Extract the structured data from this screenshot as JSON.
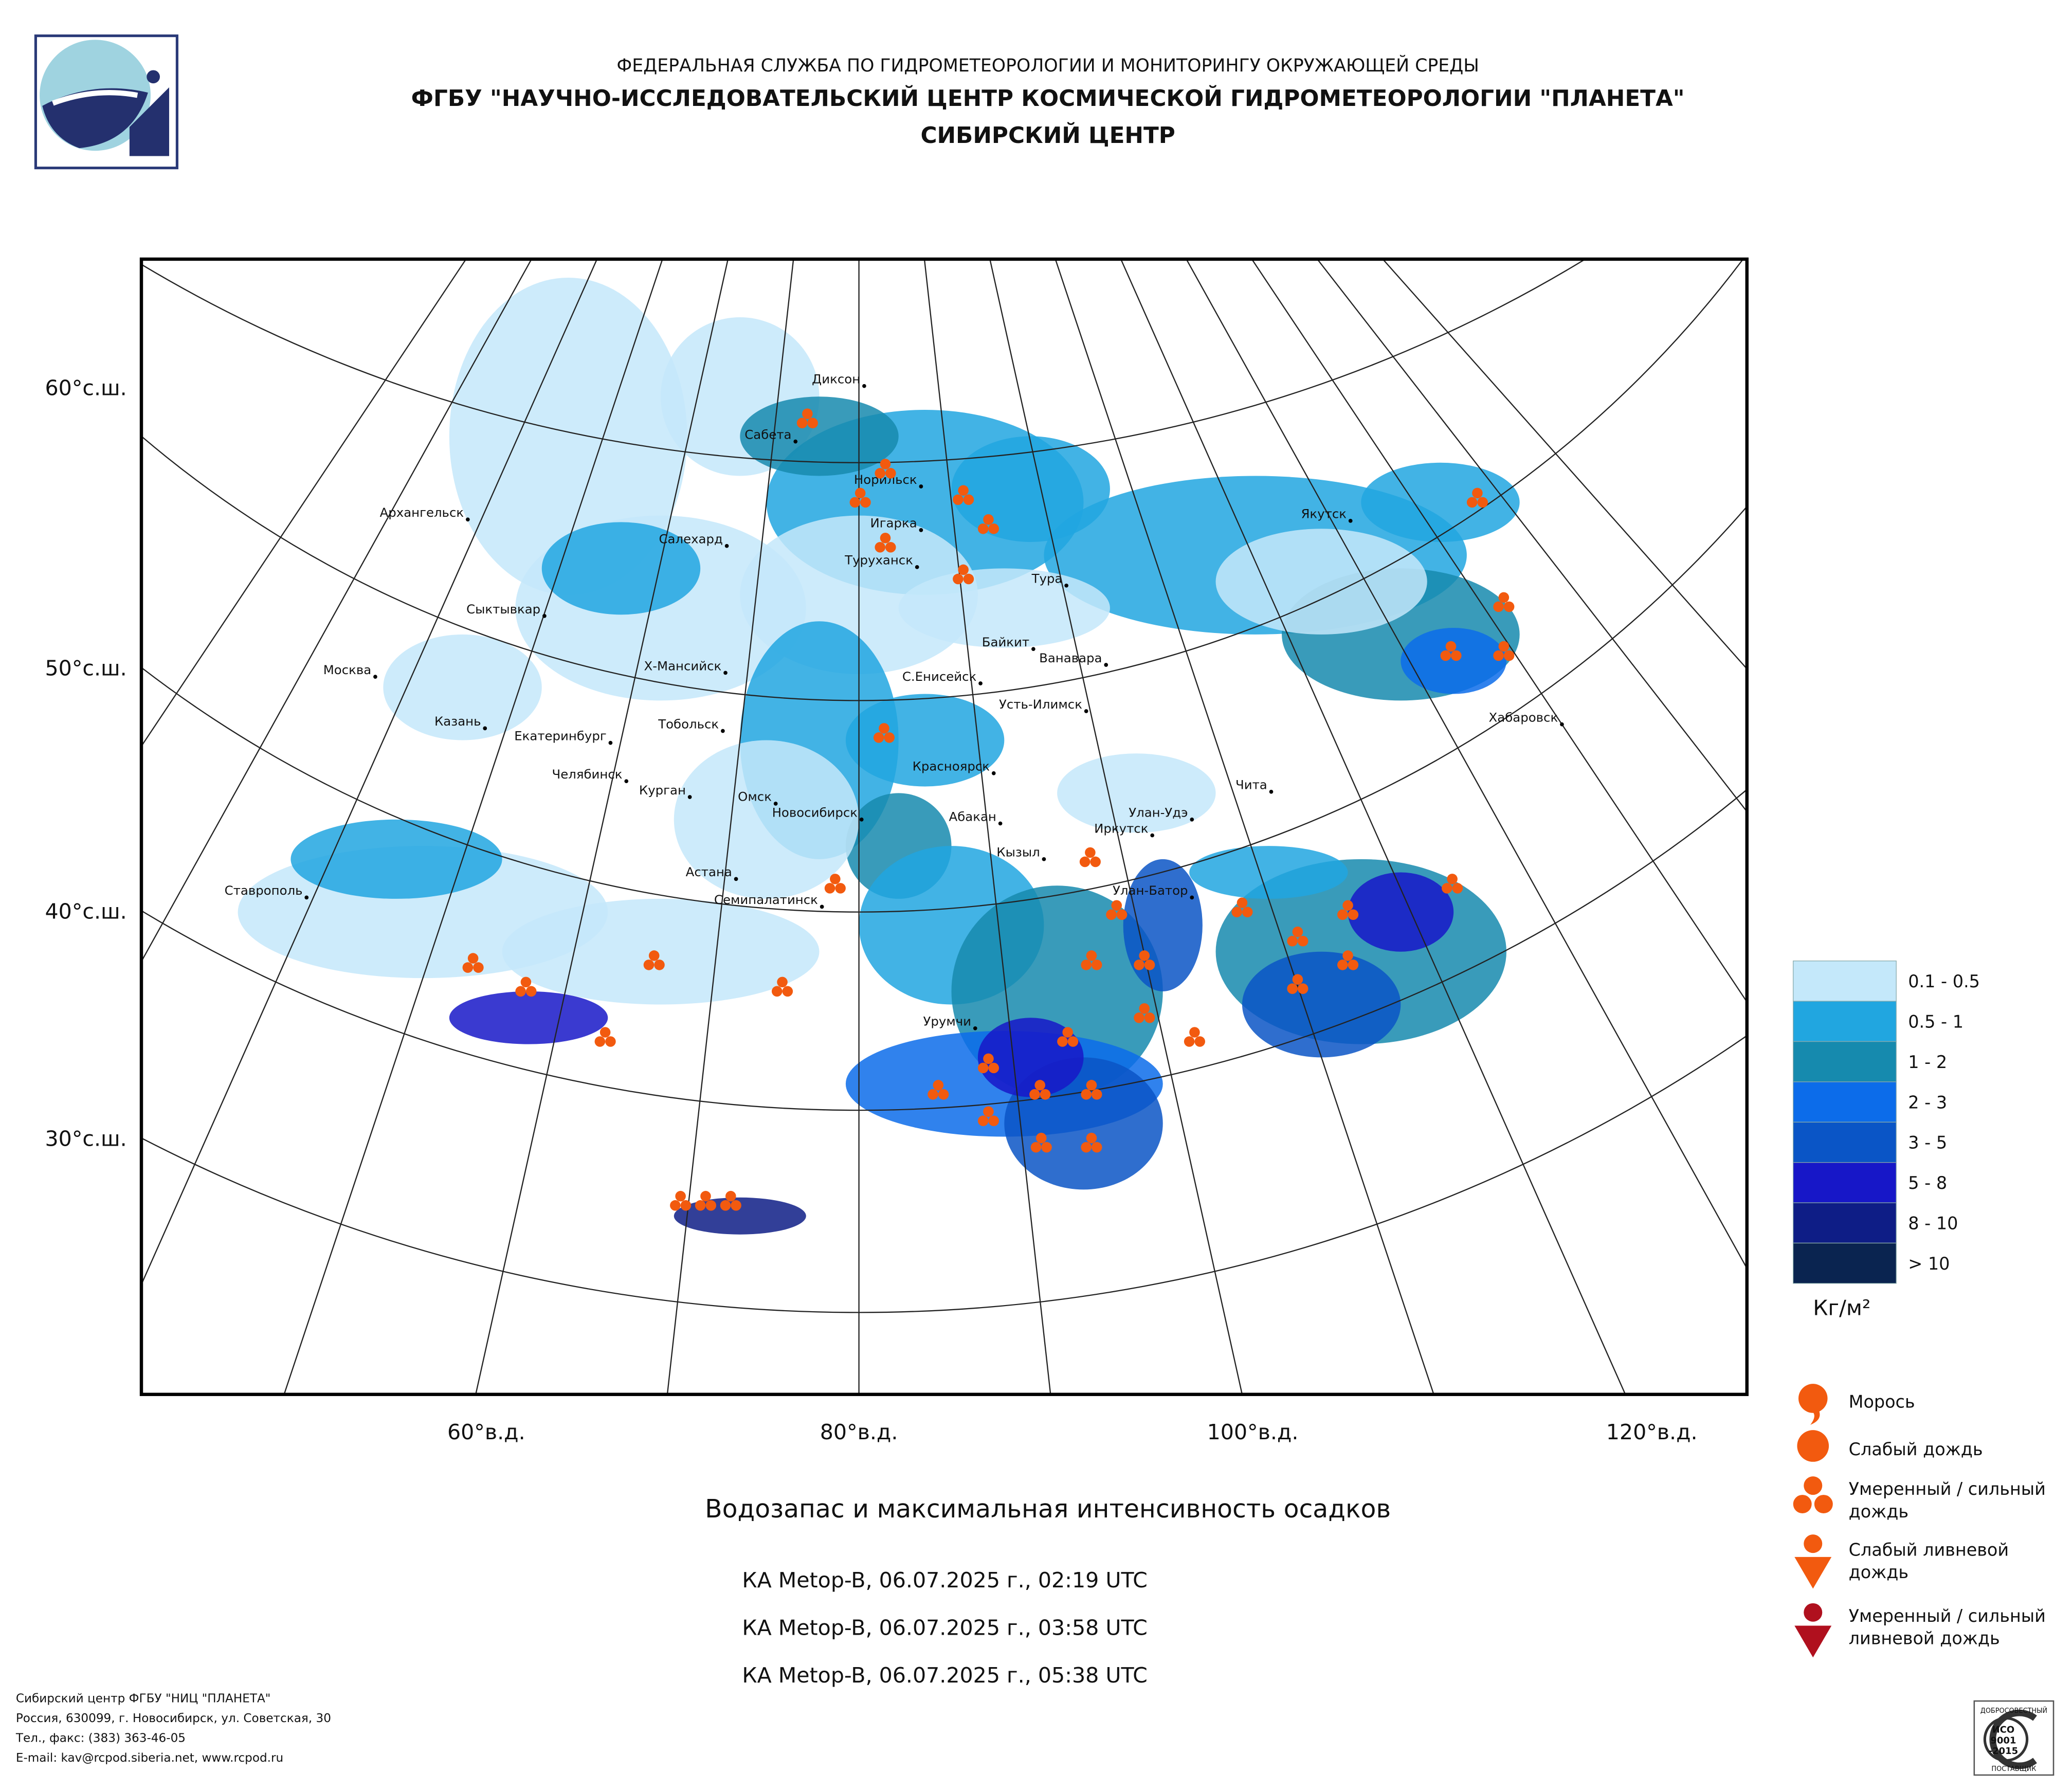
{
  "header": {
    "agency": "ФЕДЕРАЛЬНАЯ СЛУЖБА ПО ГИДРОМЕТЕОРОЛОГИИ И МОНИТОРИНГУ ОКРУЖАЮЩЕЙ СРЕДЫ",
    "institute": "ФГБУ \"НАУЧНО-ИССЛЕДОВАТЕЛЬСКИЙ ЦЕНТР КОСМИЧЕСКОЙ ГИДРОМЕТЕОРОЛОГИИ \"ПЛАНЕТА\"",
    "center": "СИБИРСКИЙ ЦЕНТР"
  },
  "map": {
    "cities": [
      "Диксон",
      "Сабета",
      "Норильск",
      "Архангельск",
      "Салехард",
      "Игарка",
      "Туруханск",
      "Тура",
      "Якутск",
      "Сыктывкар",
      "Байкит",
      "Ванавара",
      "Москва",
      "Х-Мансийск",
      "С.Енисейск",
      "Усть-Илимск",
      "Хабаровск",
      "Казань",
      "Тобольск",
      "Екатеринбург",
      "Красноярск",
      "Челябинск",
      "Курган",
      "Чита",
      "Омск",
      "Новосибирск",
      "Абакан",
      "Улан-Удэ",
      "Иркутск",
      "Кызыл",
      "Астана",
      "Ставрополь",
      "Семипалатинск",
      "Улан-Батор",
      "Урумчи"
    ],
    "lat_labels": [
      "60°с.ш.",
      "50°с.ш.",
      "40°с.ш.",
      "30°с.ш."
    ],
    "lon_labels": [
      "60°в.д.",
      "80°в.д.",
      "100°в.д.",
      "120°в.д."
    ]
  },
  "legend": {
    "classes": [
      {
        "label": "0.1 - 0.5",
        "color": "#c4e8fa"
      },
      {
        "label": "0.5 - 1",
        "color": "#21a6e0"
      },
      {
        "label": "1 - 2",
        "color": "#168aae"
      },
      {
        "label": "2 - 3",
        "color": "#0c6cea"
      },
      {
        "label": "3 - 5",
        "color": "#0a55c6"
      },
      {
        "label": "5 - 8",
        "color": "#1717c8"
      },
      {
        "label": "8 - 10",
        "color": "#0e1d86"
      },
      {
        "label": "> 10",
        "color": "#0a2450"
      }
    ],
    "unit": "Кг/м²",
    "symbols": [
      {
        "lines": [
          "Морось"
        ]
      },
      {
        "lines": [
          "Слабый дождь"
        ]
      },
      {
        "lines": [
          "Умеренный / сильный",
          "дождь"
        ]
      },
      {
        "lines": [
          "Слабый ливневой",
          "дождь"
        ]
      },
      {
        "lines": [
          "Умеренный / сильный",
          "ливневой дождь"
        ]
      }
    ]
  },
  "caption": {
    "title": "Водозапас и максимальная интенсивность осадков",
    "passes": [
      "КА Metop-B, 06.07.2025 г., 02:19 UTC",
      "КА Metop-B, 06.07.2025 г., 03:58 UTC",
      "КА Metop-B, 06.07.2025 г., 05:38 UTC"
    ]
  },
  "footer": {
    "lines": [
      "Сибирский центр ФГБУ \"НИЦ \"ПЛАНЕТА\"",
      "Россия, 630099, г. Новосибирск, ул. Советская, 30",
      "Тел., факс: (383) 363-46-05",
      "E-mail: kav@rcpod.siberia.net, www.rcpod.ru"
    ]
  },
  "badge": {
    "top": "ДОБРОСОВЕСТНЫЙ",
    "standard": [
      "ИСО",
      "9001",
      "-2015"
    ],
    "bottom": "ПОСТАВЩИК"
  }
}
